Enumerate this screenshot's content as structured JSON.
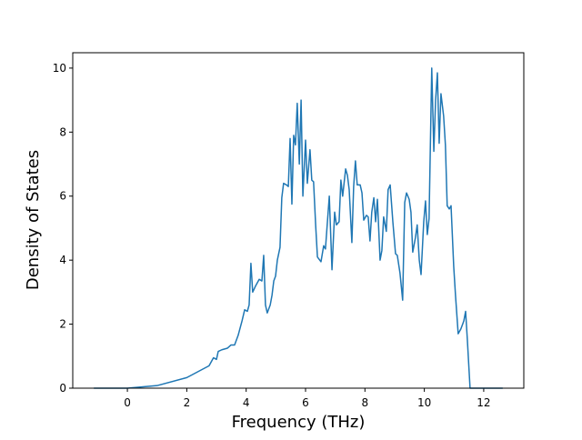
{
  "chart_data": {
    "type": "line",
    "x_label": "Frequency (THz)",
    "y_label": "Density of States",
    "xlim": [
      -1.84,
      13.35
    ],
    "ylim": [
      0,
      10.48
    ],
    "xticks": [
      0,
      2,
      4,
      6,
      8,
      10,
      12
    ],
    "yticks": [
      0,
      2,
      4,
      6,
      8,
      10
    ],
    "series": [
      {
        "color": "#1f77b4",
        "x": [
          -1.13,
          0,
          1.0,
          2.0,
          2.75,
          2.9,
          3.0,
          3.06,
          3.18,
          3.37,
          3.49,
          3.61,
          3.73,
          3.86,
          3.95,
          4.04,
          4.1,
          4.16,
          4.22,
          4.32,
          4.44,
          4.53,
          4.59,
          4.65,
          4.71,
          4.81,
          4.87,
          4.93,
          4.99,
          5.05,
          5.14,
          5.2,
          5.26,
          5.36,
          5.42,
          5.48,
          5.54,
          5.6,
          5.66,
          5.72,
          5.79,
          5.85,
          5.91,
          6.0,
          6.06,
          6.15,
          6.21,
          6.27,
          6.34,
          6.4,
          6.52,
          6.61,
          6.67,
          6.8,
          6.89,
          6.98,
          7.04,
          7.13,
          7.19,
          7.25,
          7.35,
          7.41,
          7.47,
          7.56,
          7.62,
          7.68,
          7.74,
          7.84,
          7.9,
          7.96,
          8.05,
          8.11,
          8.17,
          8.23,
          8.3,
          8.36,
          8.42,
          8.51,
          8.57,
          8.63,
          8.72,
          8.78,
          8.85,
          8.94,
          9.03,
          9.09,
          9.18,
          9.27,
          9.34,
          9.4,
          9.49,
          9.55,
          9.61,
          9.7,
          9.76,
          9.83,
          9.89,
          9.98,
          10.04,
          10.1,
          10.16,
          10.25,
          10.32,
          10.38,
          10.44,
          10.5,
          10.56,
          10.65,
          10.71,
          10.77,
          10.84,
          10.9,
          10.99,
          11.05,
          11.14,
          11.23,
          11.33,
          11.39,
          11.45,
          11.54,
          11.63,
          12.64
        ],
        "values": [
          0,
          0,
          0.08,
          0.33,
          0.7,
          0.95,
          0.9,
          1.15,
          1.2,
          1.25,
          1.35,
          1.35,
          1.65,
          2.1,
          2.45,
          2.4,
          2.6,
          3.9,
          3.0,
          3.2,
          3.4,
          3.35,
          4.15,
          2.6,
          2.35,
          2.6,
          2.9,
          3.35,
          3.5,
          4.0,
          4.4,
          5.95,
          6.4,
          6.35,
          6.3,
          7.8,
          5.75,
          7.9,
          7.6,
          8.9,
          7.0,
          9.0,
          6.0,
          7.75,
          6.4,
          7.45,
          6.5,
          6.45,
          5.1,
          4.1,
          3.95,
          4.45,
          4.35,
          6.0,
          3.7,
          5.5,
          5.1,
          5.2,
          6.5,
          6.0,
          6.85,
          6.65,
          6.2,
          4.55,
          6.3,
          7.1,
          6.35,
          6.35,
          6.1,
          5.25,
          5.4,
          5.35,
          4.6,
          5.5,
          5.95,
          5.2,
          5.9,
          4.0,
          4.3,
          5.35,
          4.9,
          6.2,
          6.35,
          5.2,
          4.2,
          4.15,
          3.6,
          2.75,
          5.8,
          6.1,
          5.9,
          5.5,
          4.25,
          4.7,
          5.1,
          4.0,
          3.55,
          5.2,
          5.85,
          4.8,
          5.3,
          10.0,
          7.4,
          9.0,
          9.85,
          7.65,
          9.2,
          8.5,
          7.6,
          5.7,
          5.6,
          5.7,
          3.8,
          2.9,
          1.7,
          1.85,
          2.1,
          2.4,
          1.5,
          0,
          0,
          0
        ]
      }
    ]
  }
}
